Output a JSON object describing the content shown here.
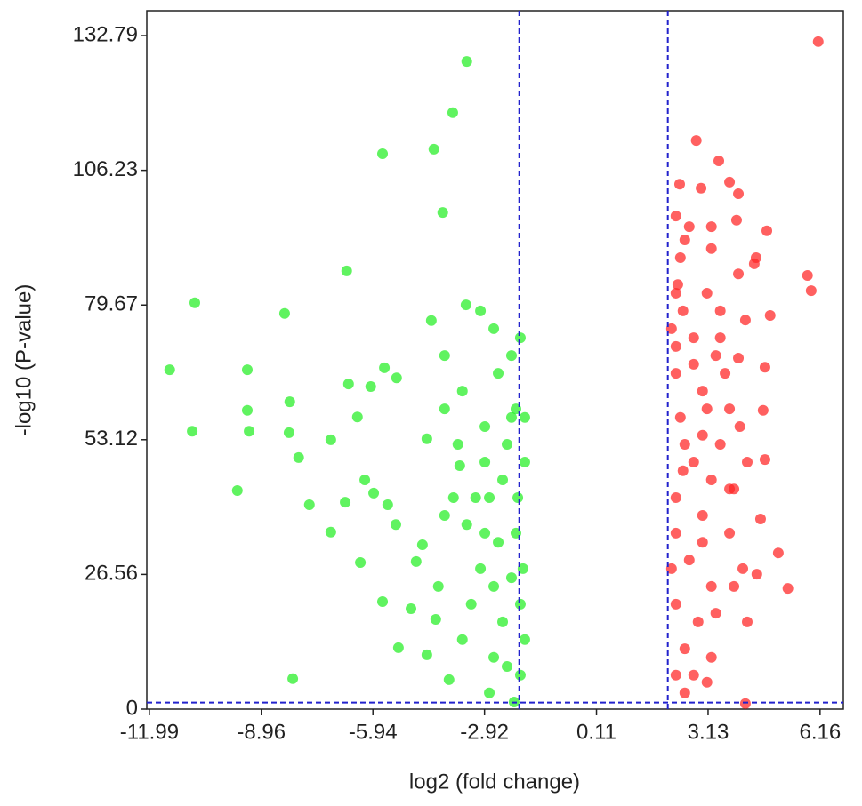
{
  "chart_data": {
    "type": "scatter",
    "x_label": "log2 (fold change)",
    "y_label": "-log10 (P-value)",
    "xlim": [
      -12.06,
      6.79
    ],
    "ylim": [
      0,
      137.7
    ],
    "xticks": [
      -11.99,
      -8.96,
      -5.94,
      -2.92,
      0.11,
      3.13,
      6.16
    ],
    "yticks": [
      0,
      26.56,
      53.12,
      79.67,
      106.23,
      132.79
    ],
    "vlines": [
      -1.98,
      2.04
    ],
    "hlines": [
      1.3
    ],
    "threshold_color": "#2222cc",
    "series": [
      {
        "color": "#22ee22",
        "x": [
          -3.4,
          -3.78,
          -5.68,
          -4.29,
          -4.05,
          -6.65,
          -10.76,
          -8.33,
          -11.44,
          -9.34,
          -10.83,
          -9.34,
          -9.29,
          -8.19,
          -8.21,
          -7.95,
          -9.61,
          -8.11,
          -7.08,
          -6.36,
          -6.6,
          -6.0,
          -5.63,
          -5.3,
          -4.36,
          -3.42,
          -6.16,
          -5.92,
          -6.69,
          -7.66,
          -7.08,
          -6.28,
          -5.54,
          -5.32,
          -5.68,
          -4.91,
          -5.25,
          -4.48,
          -3.88,
          -4.24,
          -4.17,
          -4.77,
          -4.6,
          -4.0,
          -3.76,
          -3.59,
          -4.48,
          -4.0,
          -3.52,
          -3.03,
          -2.67,
          -2.55,
          -2.19,
          -1.95,
          -2.07,
          -2.31,
          -2.91,
          -2.79,
          -2.55,
          -2.19,
          -2.43,
          -2.67,
          -2.79,
          -2.12,
          -1.95,
          -1.83,
          -1.95,
          -1.88,
          -2.07,
          -3.03,
          -3.28,
          -3.52,
          -2.91,
          -3.16,
          -2.91,
          -2.43,
          -2.19,
          -1.83,
          -4.0,
          -3.64,
          -3.4,
          -2.67,
          -2.31,
          -2.02,
          -1.83
        ],
        "values": [
          127.7,
          117.6,
          109.5,
          110.4,
          97.9,
          86.4,
          80.1,
          78.0,
          66.9,
          66.9,
          54.8,
          58.9,
          54.8,
          60.6,
          54.5,
          49.6,
          43.1,
          6.0,
          53.1,
          57.6,
          64.1,
          63.6,
          67.3,
          65.3,
          76.6,
          79.7,
          45.2,
          42.6,
          40.8,
          40.3,
          34.9,
          28.9,
          40.3,
          36.4,
          21.2,
          19.8,
          12.1,
          10.7,
          5.8,
          17.7,
          24.2,
          29.1,
          32.4,
          38.2,
          41.7,
          48.0,
          53.3,
          59.2,
          62.7,
          78.5,
          75.0,
          66.2,
          69.7,
          73.2,
          59.2,
          52.2,
          48.7,
          41.7,
          32.9,
          25.9,
          17.2,
          10.2,
          3.2,
          1.4,
          6.7,
          13.7,
          20.7,
          27.7,
          34.7,
          27.7,
          20.7,
          13.7,
          34.7,
          41.7,
          55.7,
          45.2,
          57.5,
          48.7,
          69.7,
          52.2,
          36.4,
          24.2,
          8.4,
          41.7,
          57.5
        ]
      },
      {
        "color": "#ff2222",
        "x": [
          6.11,
          2.81,
          3.42,
          3.71,
          2.36,
          2.94,
          3.95,
          2.26,
          2.62,
          3.22,
          3.9,
          4.72,
          5.82,
          5.92,
          4.38,
          3.95,
          3.1,
          2.31,
          2.45,
          3.46,
          4.81,
          4.14,
          2.14,
          2.74,
          3.34,
          3.95,
          4.67,
          2.26,
          2.98,
          3.71,
          4.62,
          2.38,
          2.98,
          3.46,
          3.99,
          4.67,
          2.45,
          3.22,
          3.83,
          4.55,
          5.03,
          5.29,
          4.45,
          2.26,
          2.98,
          3.71,
          2.26,
          2.62,
          3.22,
          3.83,
          2.26,
          2.86,
          2.5,
          3.22,
          2.26,
          2.5,
          4.14,
          3.1,
          2.14,
          2.74,
          2.38,
          3.22,
          2.5,
          3.59,
          2.98,
          4.19,
          3.34,
          2.74,
          4.07,
          4.43,
          2.5,
          3.1,
          2.26,
          2.74,
          3.46,
          2.26,
          3.71,
          4.19
        ],
        "values": [
          131.6,
          112.1,
          108.1,
          103.9,
          103.5,
          102.7,
          101.6,
          97.2,
          95.1,
          95.1,
          96.4,
          94.3,
          85.5,
          82.5,
          87.8,
          85.8,
          82.0,
          83.7,
          78.5,
          78.5,
          77.6,
          76.7,
          75.0,
          73.2,
          69.7,
          69.2,
          67.4,
          66.2,
          62.7,
          59.2,
          58.9,
          57.5,
          54.0,
          52.2,
          55.7,
          49.2,
          47.0,
          45.2,
          43.4,
          37.5,
          30.8,
          23.8,
          26.6,
          41.7,
          38.2,
          34.7,
          34.7,
          29.4,
          24.2,
          24.2,
          20.7,
          17.2,
          11.9,
          10.2,
          6.7,
          3.2,
          1.1,
          5.3,
          27.7,
          48.7,
          89.0,
          90.8,
          92.5,
          66.2,
          32.9,
          48.7,
          18.9,
          6.7,
          27.7,
          89.0,
          52.2,
          59.2,
          71.5,
          68.0,
          73.2,
          82.0,
          43.4,
          17.2
        ]
      }
    ]
  }
}
